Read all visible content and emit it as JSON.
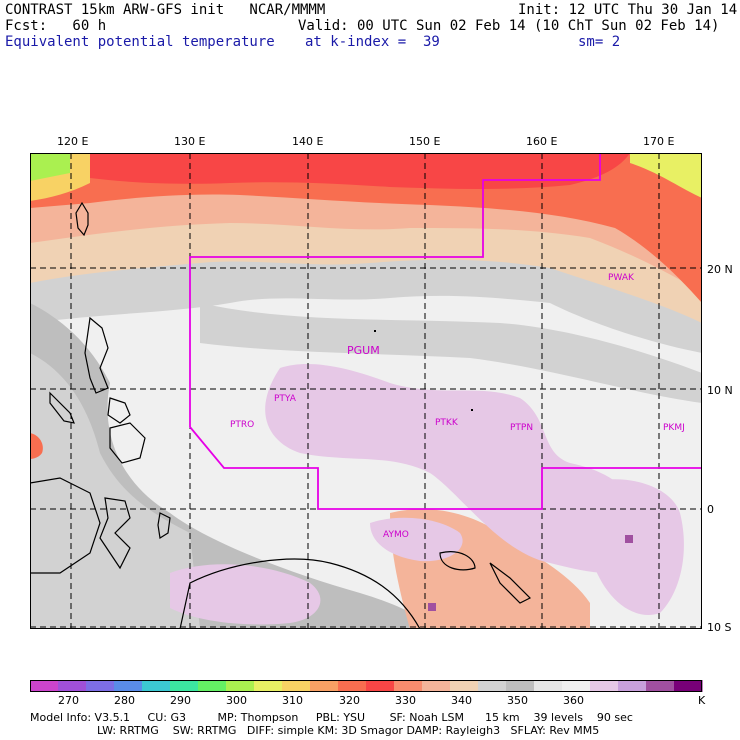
{
  "header": {
    "line1_left": "CONTRAST 15km ARW-GFS init   NCAR/MMMM",
    "line1_right": "Init: 12 UTC Thu 30 Jan 14",
    "line2_left": "Fcst:   60 h",
    "line2_right": "Valid: 00 UTC Sun 02 Feb 14 (10 ChT Sun 02 Feb 14)",
    "line3_field": "Equivalent potential temperature",
    "line3_level": "at k-index =  39",
    "line3_smooth": "sm= 2"
  },
  "axes": {
    "lon_labels": [
      "120 E",
      "130 E",
      "140 E",
      "150 E",
      "160 E",
      "170 E"
    ],
    "lat_labels": [
      "20 N",
      "10 N",
      "0",
      "10 S"
    ]
  },
  "stations": [
    {
      "id": "PGUM",
      "lon": 144.8,
      "lat": 13.5
    },
    {
      "id": "PTYA",
      "lon": 138.1,
      "lat": 9.5
    },
    {
      "id": "PTRO",
      "lon": 134.5,
      "lat": 7.3
    },
    {
      "id": "PTKK",
      "lon": 151.8,
      "lat": 7.5
    },
    {
      "id": "PTPN",
      "lon": 158.2,
      "lat": 7.0
    },
    {
      "id": "PKMJ",
      "lon": 171.3,
      "lat": 7.0
    },
    {
      "id": "PWAK",
      "lon": 166.6,
      "lat": 19.3
    },
    {
      "id": "AYMO",
      "lon": 147.4,
      "lat": -2.1
    }
  ],
  "colorbar": {
    "labels": [
      "270",
      "280",
      "290",
      "300",
      "310",
      "320",
      "330",
      "340",
      "350",
      "360"
    ],
    "unit": "K",
    "colors": [
      "#cc44cc",
      "#a050d8",
      "#7d6ee6",
      "#5a8ce8",
      "#3cc8d2",
      "#3ce6a0",
      "#64f064",
      "#aaf050",
      "#e8f064",
      "#f8d264",
      "#f8a064",
      "#f86e50",
      "#f84646",
      "#f88c6e",
      "#f4b49a",
      "#f0d2b4",
      "#d2d2d2",
      "#bebebe",
      "#e6e6e6",
      "#f0f0f0",
      "#e6c8e6",
      "#c8a0dc",
      "#a050a0",
      "#780078"
    ]
  },
  "model_info": {
    "line1": "Model Info: V3.5.1     CU: G3         MP: Thompson     PBL: YSU       SF: Noah LSM      15 km    39 levels    90 sec",
    "line2": "LW: RRTMG    SW: RRTMG   DIFF: simple KM: 3D Smagor DAMP: Rayleigh3   SFLAY: Rev MM5"
  }
}
